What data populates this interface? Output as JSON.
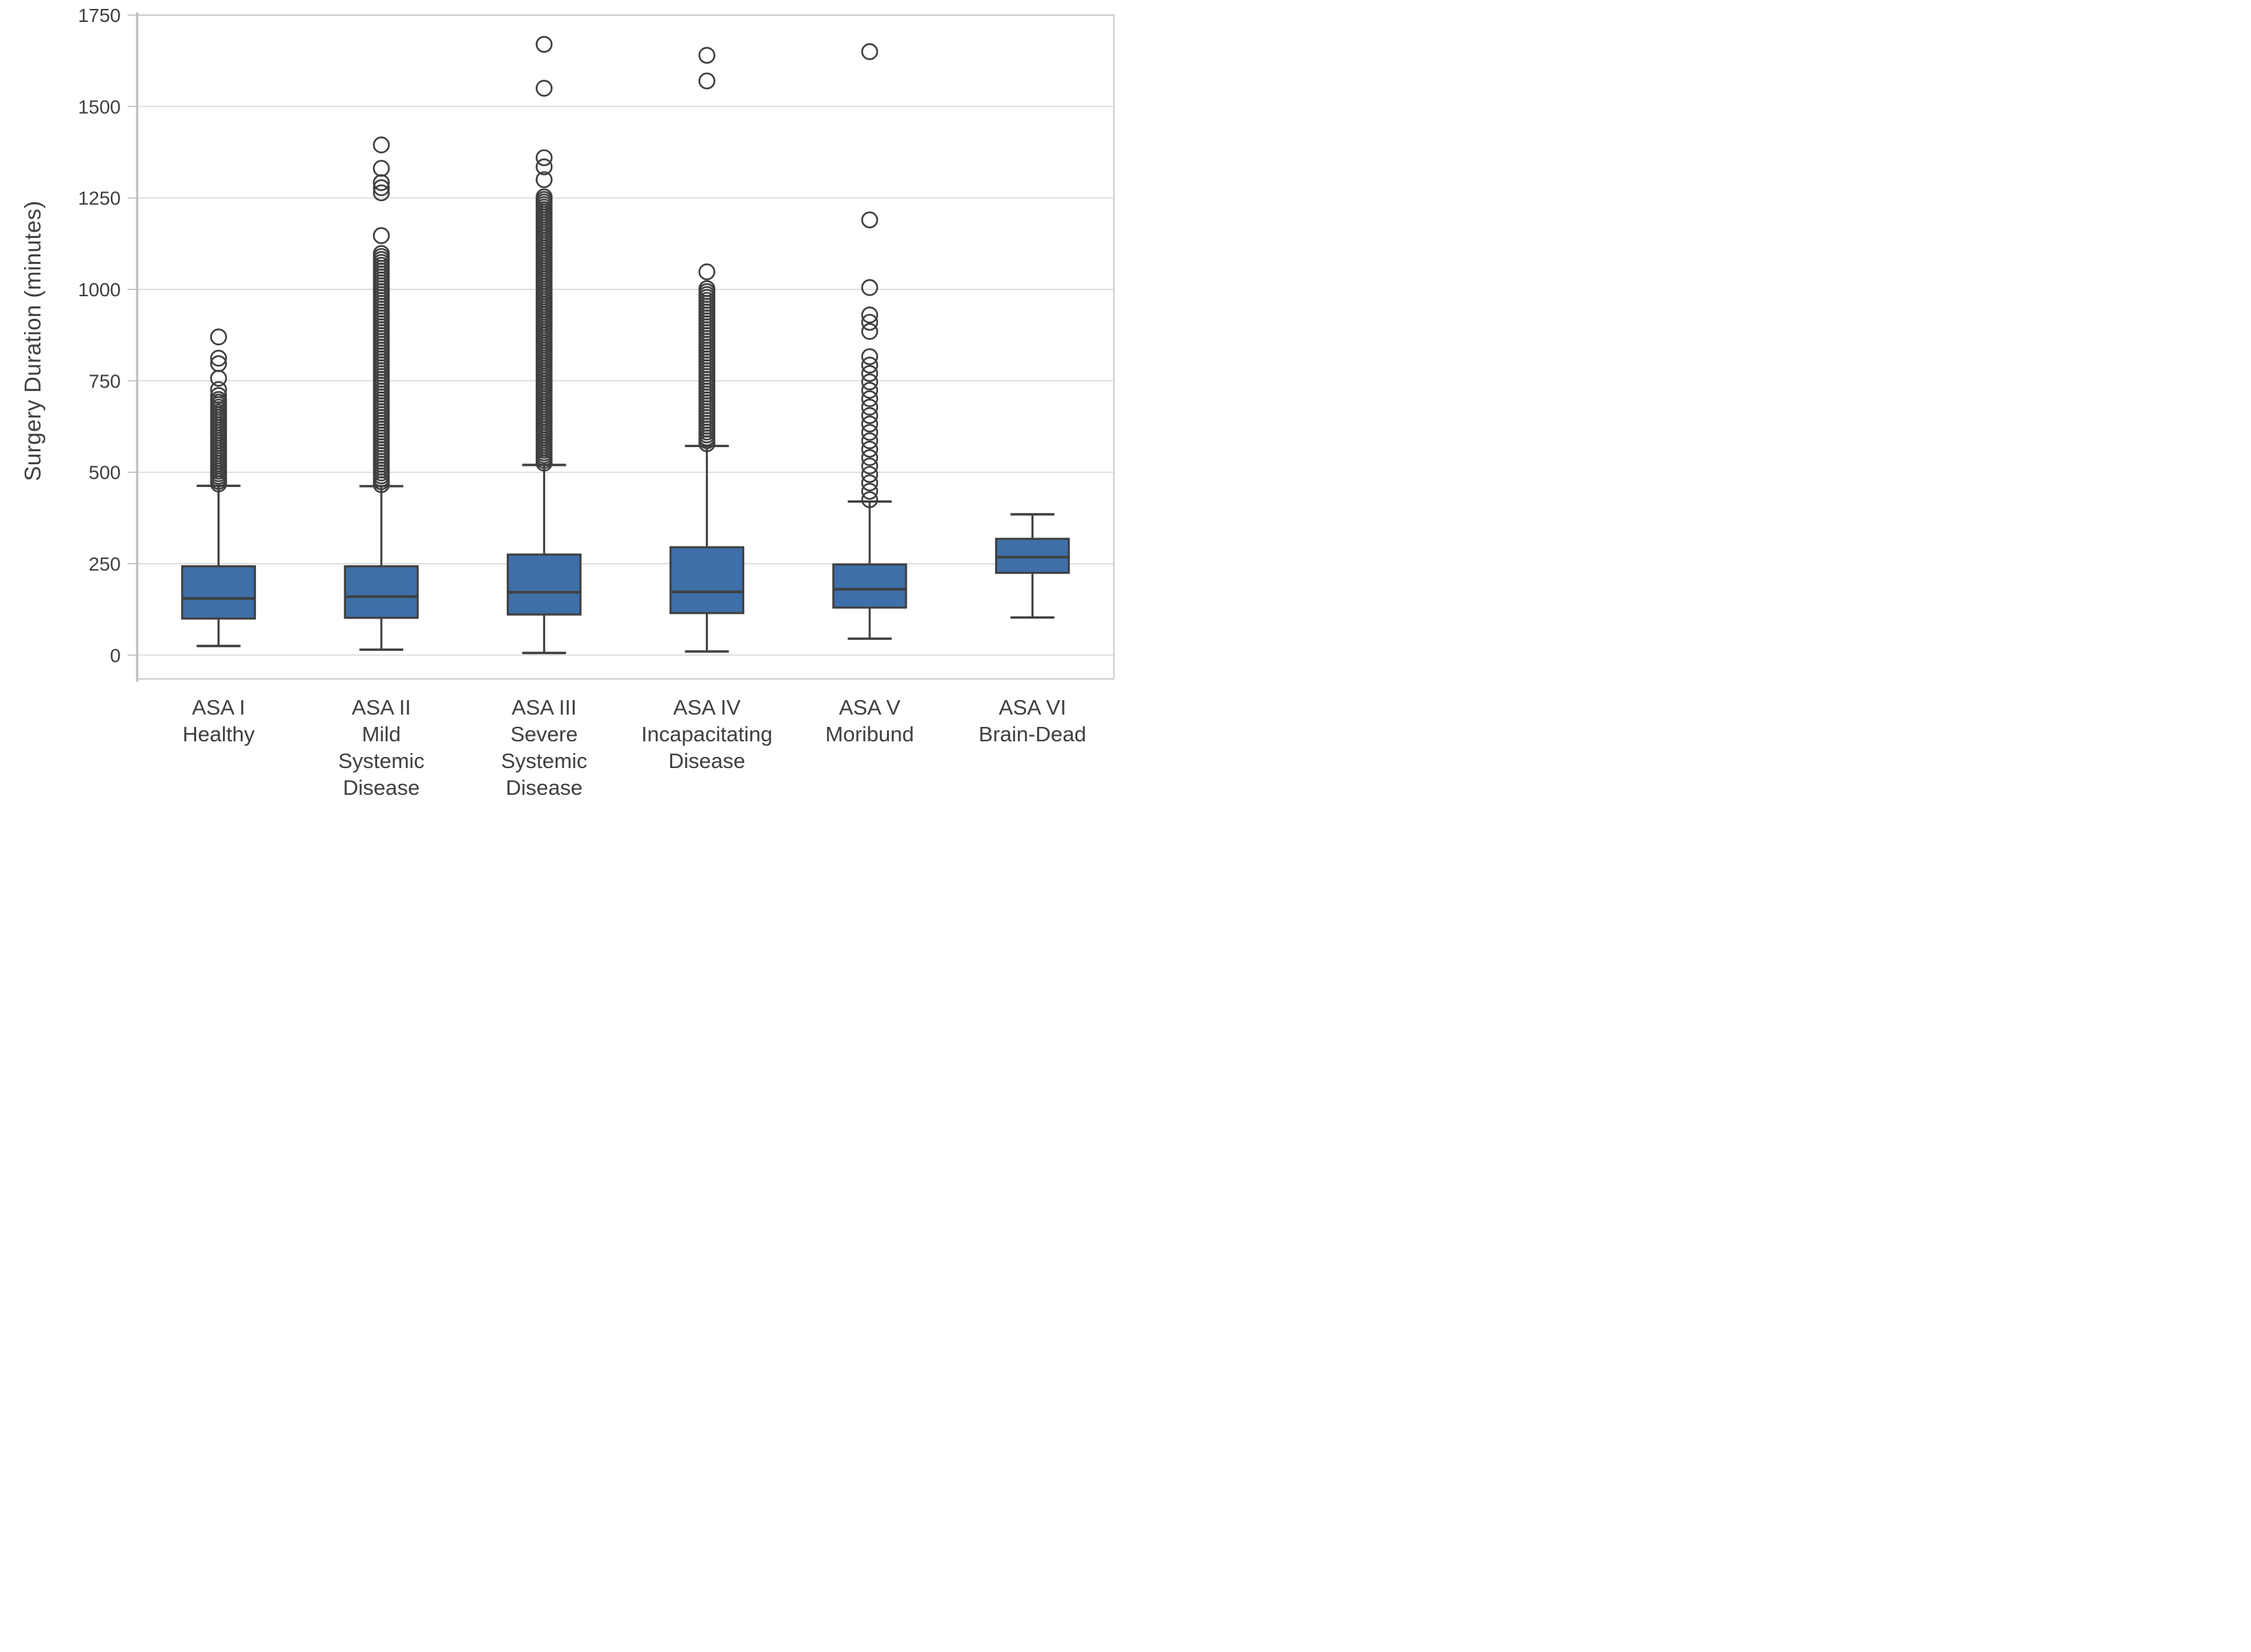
{
  "chart_data": {
    "type": "box",
    "title": "",
    "xlabel": "",
    "ylabel": "Surgery Duration (minutes)",
    "ylim": [
      -65,
      1750
    ],
    "yticks": [
      0,
      250,
      500,
      750,
      1000,
      1250,
      1500,
      1750
    ],
    "grid": "horizontal",
    "legend": "none",
    "colors": {
      "box_fill": "#3E6FA8",
      "box_border": "#3F3F3F",
      "median": "#3F3F3F",
      "whisker": "#3F3F3F",
      "outlier": "#3F3F3F",
      "gridline": "#D9D9D9",
      "frame": "#C8C8C8",
      "axis_line": "#BFBFBF",
      "text": "#3F3F3F",
      "background": "#FFFFFF"
    },
    "categories": [
      {
        "label_lines": [
          "ASA I",
          "Healthy"
        ],
        "stats": {
          "whisker_low": 25,
          "q1": 100,
          "median": 155,
          "q3": 243,
          "whisker_high": 463
        },
        "outlier_band": {
          "min": 468,
          "max": 700,
          "step": 7
        },
        "outliers": [
          710,
          726,
          757,
          797,
          812,
          870
        ]
      },
      {
        "label_lines": [
          "ASA II",
          "Mild",
          "Systemic",
          "Disease"
        ],
        "stats": {
          "whisker_low": 15,
          "q1": 102,
          "median": 160,
          "q3": 243,
          "whisker_high": 462
        },
        "outlier_band": {
          "min": 466,
          "max": 1100,
          "step": 8
        },
        "outliers": [
          1147,
          1264,
          1278,
          1292,
          1331,
          1395
        ]
      },
      {
        "label_lines": [
          "ASA III",
          "Severe",
          "Systemic",
          "Disease"
        ],
        "stats": {
          "whisker_low": 6,
          "q1": 111,
          "median": 172,
          "q3": 275,
          "whisker_high": 520
        },
        "outlier_band": {
          "min": 525,
          "max": 1258,
          "step": 7
        },
        "outliers": [
          1300,
          1335,
          1360,
          1550,
          1670
        ]
      },
      {
        "label_lines": [
          "ASA IV",
          "Incapacitating",
          "Disease"
        ],
        "stats": {
          "whisker_low": 10,
          "q1": 115,
          "median": 173,
          "q3": 295,
          "whisker_high": 572
        },
        "outlier_band": {
          "min": 578,
          "max": 1002,
          "step": 8
        },
        "outliers": [
          1048,
          1570,
          1640
        ]
      },
      {
        "label_lines": [
          "ASA V",
          "Moribund"
        ],
        "stats": {
          "whisker_low": 45,
          "q1": 130,
          "median": 180,
          "q3": 248,
          "whisker_high": 420
        },
        "outlier_band": {
          "min": 425,
          "max": 832,
          "step": 23
        },
        "outliers": [
          885,
          910,
          930,
          1005,
          1190,
          1650
        ]
      },
      {
        "label_lines": [
          "ASA VI",
          "Brain-Dead"
        ],
        "stats": {
          "whisker_low": 103,
          "q1": 225,
          "median": 268,
          "q3": 318,
          "whisker_high": 385
        },
        "outlier_band": null,
        "outliers": []
      }
    ]
  }
}
